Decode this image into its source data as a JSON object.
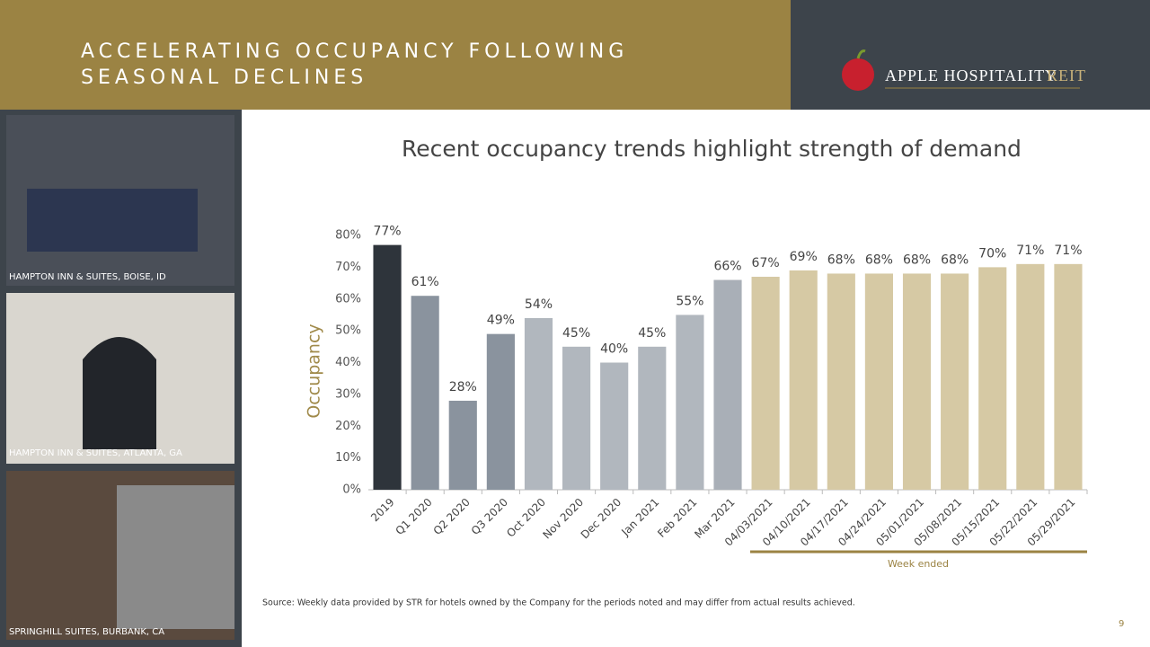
{
  "header": {
    "title_lines": [
      "ACCELERATING OCCUPANCY FOLLOWING",
      "SEASONAL DECLINES"
    ]
  },
  "logo": {
    "name": "APPLE HOSPITALITY",
    "suffix": "REIT"
  },
  "photos": [
    {
      "caption": "HAMPTON INN & SUITES, BOISE, ID"
    },
    {
      "caption": "HAMPTON INN & SUITES, ATLANTA, GA"
    },
    {
      "caption": "SPRINGHILL SUITES, BURBANK, CA"
    }
  ],
  "chart_data": {
    "type": "bar",
    "title": "Recent occupancy trends highlight strength of demand",
    "y_label": "Occupancy",
    "annotation": "Week ended",
    "categories": [
      "2019",
      "Q1 2020",
      "Q2 2020",
      "Q3 2020",
      "Oct 2020",
      "Nov 2020",
      "Dec 2020",
      "Jan 2021",
      "Feb 2021",
      "Mar 2021",
      "04/03/2021",
      "04/10/2021",
      "04/17/2021",
      "04/24/2021",
      "05/01/2021",
      "05/08/2021",
      "05/15/2021",
      "05/22/2021",
      "05/29/2021"
    ],
    "values": [
      77,
      61,
      28,
      49,
      54,
      45,
      40,
      45,
      55,
      66,
      67,
      69,
      68,
      68,
      68,
      68,
      70,
      71,
      71
    ],
    "value_labels": [
      "77%",
      "61%",
      "28%",
      "49%",
      "54%",
      "45%",
      "40%",
      "45%",
      "55%",
      "66%",
      "67%",
      "69%",
      "68%",
      "68%",
      "68%",
      "68%",
      "70%",
      "71%",
      "71%"
    ],
    "colors": [
      "#2e343b",
      "#8a939e",
      "#8a939e",
      "#8a939e",
      "#b1b7be",
      "#b1b7be",
      "#b1b7be",
      "#b1b7be",
      "#b1b7be",
      "#a9afb7",
      "#d6c9a4",
      "#d6c9a4",
      "#d6c9a4",
      "#d6c9a4",
      "#d6c9a4",
      "#d6c9a4",
      "#d6c9a4",
      "#d6c9a4",
      "#d6c9a4"
    ],
    "ylim": [
      0,
      80
    ],
    "yticks": [
      {
        "value": 0,
        "label": "0%"
      },
      {
        "value": 10,
        "label": "10%"
      },
      {
        "value": 20,
        "label": "20%"
      },
      {
        "value": 30,
        "label": "30%"
      },
      {
        "value": 40,
        "label": "40%"
      },
      {
        "value": 50,
        "label": "50%"
      },
      {
        "value": 60,
        "label": "60%"
      },
      {
        "value": 70,
        "label": "70%"
      },
      {
        "value": 80,
        "label": "80%"
      }
    ],
    "grid": false
  },
  "source": "Source:  Weekly data provided by STR for hotels owned by the Company for the periods noted and may differ from actual results achieved.",
  "page_number": "9"
}
